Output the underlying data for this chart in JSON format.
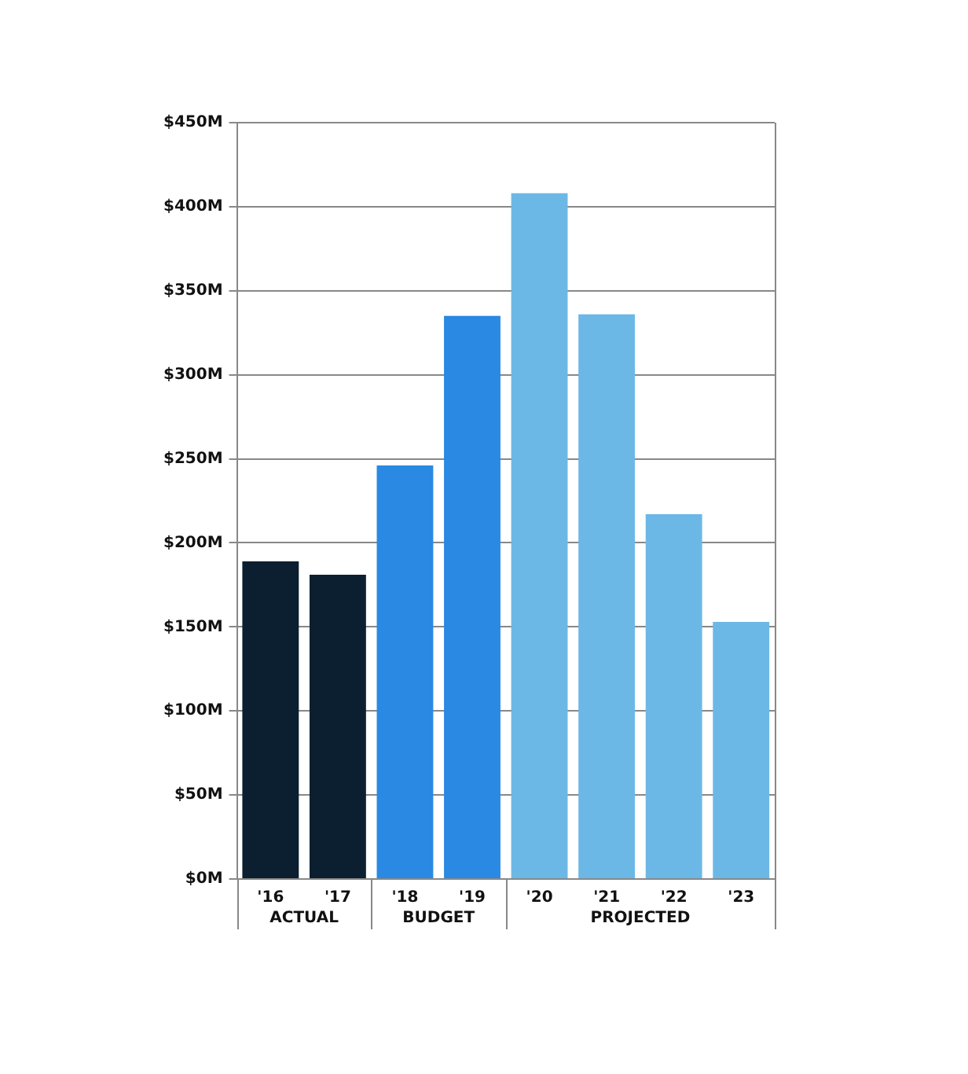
{
  "chart_data": {
    "type": "bar",
    "stacked": true,
    "categories": [
      "'16",
      "'17",
      "'18",
      "'19",
      "'20",
      "'21",
      "'22",
      "'23"
    ],
    "series": [
      {
        "name": "ACTUAL",
        "color": "#0b1f30",
        "values": [
          189,
          181,
          null,
          null,
          null,
          null,
          null,
          null
        ]
      },
      {
        "name": "BUDGET",
        "color": "#2989e3",
        "values": [
          null,
          null,
          246,
          335,
          null,
          null,
          null,
          null
        ]
      },
      {
        "name": "PROJECTED",
        "color": "#6bb8e6",
        "values": [
          null,
          null,
          null,
          null,
          408,
          336,
          217,
          153
        ]
      }
    ],
    "ylim": [
      0,
      450
    ],
    "yticks": [
      {
        "value": 0,
        "label": "$0M"
      },
      {
        "value": 50,
        "label": "$50M"
      },
      {
        "value": 100,
        "label": "$100M"
      },
      {
        "value": 150,
        "label": "$150M"
      },
      {
        "value": 200,
        "label": "$200M"
      },
      {
        "value": 250,
        "label": "$250M"
      },
      {
        "value": 300,
        "label": "$300M"
      },
      {
        "value": 350,
        "label": "$350M"
      },
      {
        "value": 400,
        "label": "$400M"
      },
      {
        "value": 450,
        "label": "$450M"
      }
    ],
    "grid": "y",
    "legend": false
  }
}
